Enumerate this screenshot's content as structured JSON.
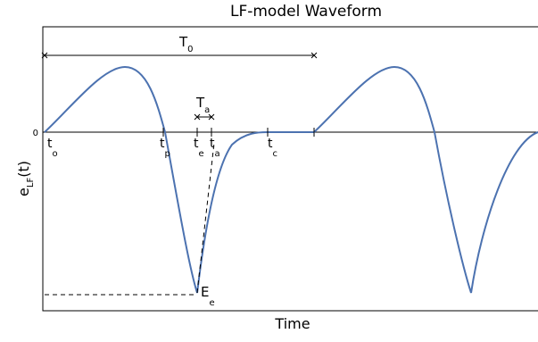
{
  "title": "LF-model Waveform",
  "y_label": {
    "main": "e",
    "sub": "LF",
    "rest": "(t)"
  },
  "x_label": "Time",
  "zero_label": "0",
  "period": {
    "main": "T",
    "sub": "0"
  },
  "return_phase": {
    "main": "T",
    "sub": "a"
  },
  "excitation": {
    "main": "E",
    "sub": "e"
  },
  "instants": [
    {
      "main": "t",
      "sub": "o"
    },
    {
      "main": "t",
      "sub": "p"
    },
    {
      "main": "t",
      "sub": "e"
    },
    {
      "main": "t",
      "sub": "a"
    },
    {
      "main": "t",
      "sub": "c"
    }
  ]
}
